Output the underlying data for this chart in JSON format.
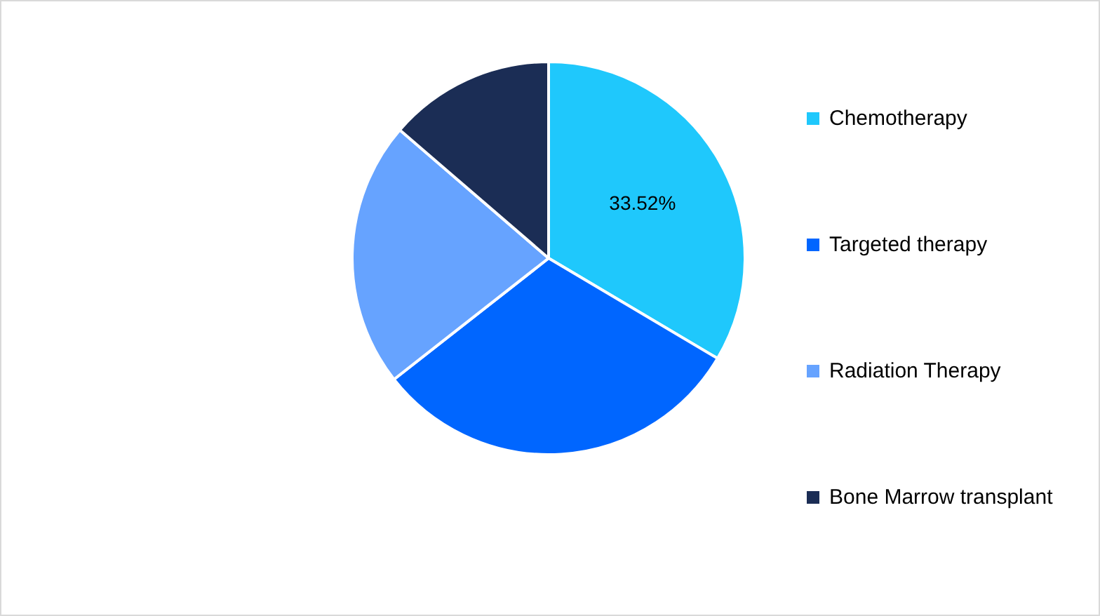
{
  "chart_data": {
    "type": "pie",
    "categories": [
      "Chemotherapy",
      "Targeted therapy",
      "Radiation Therapy",
      "Bone Marrow transplant"
    ],
    "values": [
      33.52,
      30.9,
      21.9,
      13.68
    ],
    "colors": [
      "#1fc8fc",
      "#0066ff",
      "#66a3ff",
      "#1b2d55"
    ],
    "value_labels": [
      "33.52%",
      null,
      null,
      null
    ],
    "legend": "right"
  }
}
